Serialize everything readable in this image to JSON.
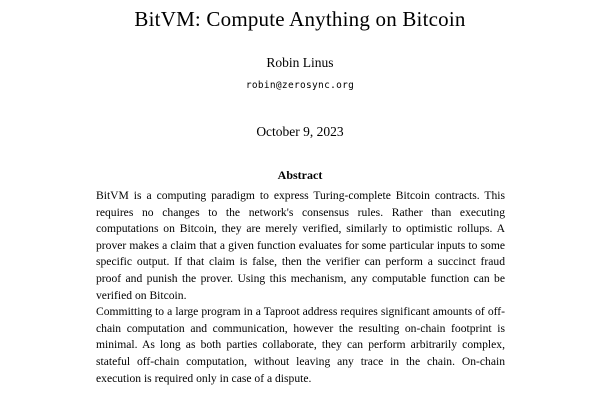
{
  "page": {
    "background_color": "#ffffff",
    "text_color": "#000000"
  },
  "paper": {
    "title": "BitVM: Compute Anything on Bitcoin",
    "author": "Robin Linus",
    "email": "robin@zerosync.org",
    "date": "October 9, 2023",
    "abstract": {
      "heading": "Abstract",
      "paragraphs": [
        "BitVM is a computing paradigm to express Turing-complete Bitcoin contracts. This requires no changes to the network's consensus rules. Rather than executing computations on Bitcoin, they are merely verified, similarly to optimistic rollups. A prover makes a claim that a given function evaluates for some particular inputs to some specific output. If that claim is false, then the verifier can perform a succinct fraud proof and punish the prover. Using this mechanism, any computable function can be verified on Bitcoin.",
        "Committing to a large program in a Taproot address requires significant amounts of off-chain computation and communication, however the resulting on-chain footprint is minimal. As long as both parties collaborate, they can perform arbitrarily complex, stateful off-chain computation, without leaving any trace in the chain. On-chain execution is required only in case of a dispute."
      ]
    }
  }
}
